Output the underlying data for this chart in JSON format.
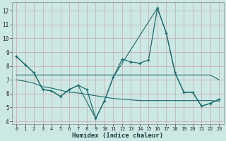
{
  "xlabel": "Humidex (Indice chaleur)",
  "ylabel": "",
  "background_color": "#cce8e5",
  "grid_color": "#c8a8a8",
  "line_color": "#1a6b6b",
  "xlim": [
    -0.5,
    23.5
  ],
  "ylim": [
    3.8,
    12.6
  ],
  "xticks": [
    0,
    1,
    2,
    3,
    4,
    5,
    6,
    7,
    8,
    9,
    10,
    11,
    12,
    13,
    14,
    15,
    16,
    17,
    18,
    19,
    20,
    21,
    22,
    23
  ],
  "yticks": [
    4,
    5,
    6,
    7,
    8,
    9,
    10,
    11,
    12
  ],
  "line1": {
    "x": [
      0,
      1,
      2,
      3,
      4,
      5,
      6,
      7,
      8,
      9,
      10,
      11,
      12,
      13,
      14,
      15,
      16,
      17,
      18,
      19,
      20,
      21,
      22,
      23
    ],
    "y": [
      8.7,
      8.1,
      7.5,
      6.3,
      6.2,
      5.8,
      6.3,
      6.6,
      6.3,
      4.2,
      5.5,
      7.2,
      8.5,
      8.3,
      8.2,
      8.45,
      12.2,
      10.4,
      7.5,
      6.1,
      6.1,
      5.1,
      5.3,
      5.6
    ]
  },
  "line2": {
    "x": [
      0,
      1,
      2,
      3,
      4,
      5,
      6,
      7,
      8,
      9,
      10,
      11,
      12,
      13,
      14,
      15,
      16,
      17,
      18,
      19,
      20,
      21,
      22,
      23
    ],
    "y": [
      7.35,
      7.35,
      7.35,
      7.35,
      7.35,
      7.35,
      7.35,
      7.35,
      7.35,
      7.35,
      7.35,
      7.35,
      7.35,
      7.35,
      7.35,
      7.35,
      7.35,
      7.35,
      7.35,
      7.35,
      7.35,
      7.35,
      7.35,
      7.0
    ]
  },
  "line3": {
    "x": [
      0,
      1,
      2,
      3,
      4,
      5,
      6,
      7,
      8,
      9,
      10,
      11,
      12,
      13,
      14,
      15,
      16,
      17,
      18,
      19,
      20,
      21,
      22,
      23
    ],
    "y": [
      7.0,
      6.9,
      6.75,
      6.5,
      6.4,
      6.25,
      6.1,
      6.05,
      5.95,
      5.85,
      5.75,
      5.65,
      5.6,
      5.55,
      5.5,
      5.5,
      5.5,
      5.5,
      5.5,
      5.5,
      5.5,
      5.5,
      5.5,
      5.45
    ]
  },
  "line4": {
    "x": [
      0,
      2,
      3,
      4,
      5,
      6,
      7,
      9,
      10,
      11,
      16,
      17,
      18,
      19,
      20,
      21,
      22,
      23
    ],
    "y": [
      8.7,
      7.5,
      6.3,
      6.2,
      5.8,
      6.3,
      6.6,
      4.2,
      5.5,
      7.2,
      12.2,
      10.4,
      7.5,
      6.1,
      6.1,
      5.1,
      5.3,
      5.6
    ]
  }
}
